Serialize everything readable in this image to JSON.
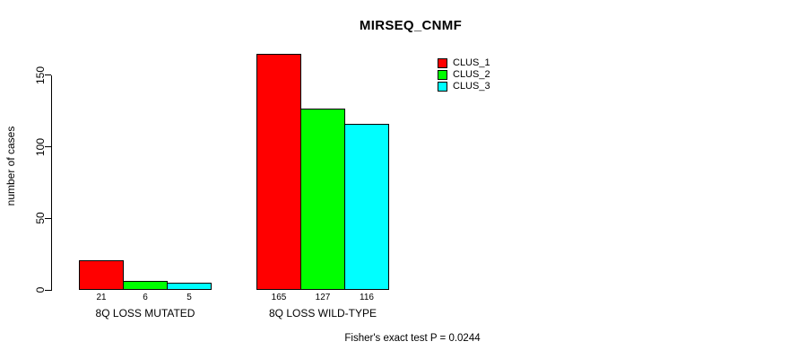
{
  "chart_data": {
    "type": "bar",
    "grouped": true,
    "title": "MIRSEQ_CNMF",
    "ylabel": "number of cases",
    "xlabel": "",
    "annotation": "Fisher's exact test P = 0.0244",
    "categories": [
      "8Q LOSS MUTATED",
      "8Q LOSS WILD-TYPE"
    ],
    "series": [
      {
        "name": "CLUS_1",
        "color": "#FF0000",
        "values": [
          21,
          165
        ]
      },
      {
        "name": "CLUS_2",
        "color": "#00FF00",
        "values": [
          6,
          127
        ]
      },
      {
        "name": "CLUS_3",
        "color": "#00FFFF",
        "values": [
          5,
          116
        ]
      }
    ],
    "bar_value_labels": [
      [
        "21",
        "6",
        "5"
      ],
      [
        "165",
        "127",
        "116"
      ]
    ],
    "yticks": [
      0,
      50,
      100,
      150
    ],
    "ylim": [
      0,
      165
    ],
    "grid": false,
    "legend_position": "top-right",
    "background": "#FFFFFF",
    "axis_color": "#000000"
  }
}
